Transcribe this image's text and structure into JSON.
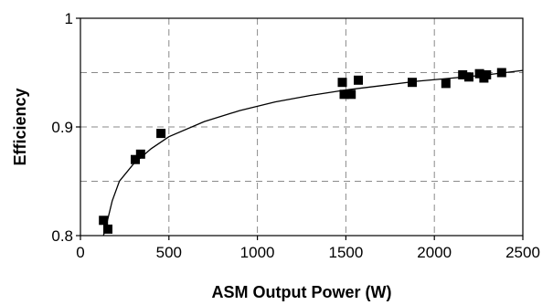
{
  "chart_data": {
    "type": "scatter",
    "xlabel": "ASM Output Power (W)",
    "ylabel": "Efficiency",
    "xlim": [
      0,
      2500
    ],
    "ylim": [
      0.8,
      1.0
    ],
    "x_ticks": [
      {
        "value": 0,
        "label": "0"
      },
      {
        "value": 500,
        "label": "500"
      },
      {
        "value": 1000,
        "label": "1000"
      },
      {
        "value": 1500,
        "label": "1500"
      },
      {
        "value": 2000,
        "label": "2000"
      },
      {
        "value": 2500,
        "label": "2500"
      }
    ],
    "y_ticks": [
      {
        "value": 0.8,
        "label": "0.8"
      },
      {
        "value": 0.9,
        "label": "0.9"
      },
      {
        "value": 1.0,
        "label": "1"
      }
    ],
    "y_gridlines": [
      0.85,
      0.9,
      0.95
    ],
    "x_gridlines": [
      500,
      1000,
      1500,
      2000
    ],
    "grid": true,
    "series": [
      {
        "type": "scatter",
        "marker": "square",
        "color": "#000000",
        "points": [
          {
            "x": 130,
            "y": 0.814
          },
          {
            "x": 155,
            "y": 0.806
          },
          {
            "x": 310,
            "y": 0.87
          },
          {
            "x": 340,
            "y": 0.875
          },
          {
            "x": 455,
            "y": 0.894
          },
          {
            "x": 1480,
            "y": 0.941
          },
          {
            "x": 1490,
            "y": 0.93
          },
          {
            "x": 1530,
            "y": 0.93
          },
          {
            "x": 1570,
            "y": 0.943
          },
          {
            "x": 1875,
            "y": 0.941
          },
          {
            "x": 2065,
            "y": 0.94
          },
          {
            "x": 2160,
            "y": 0.948
          },
          {
            "x": 2195,
            "y": 0.946
          },
          {
            "x": 2255,
            "y": 0.949
          },
          {
            "x": 2280,
            "y": 0.945
          },
          {
            "x": 2295,
            "y": 0.948
          },
          {
            "x": 2380,
            "y": 0.95
          }
        ]
      },
      {
        "type": "line",
        "color": "#000000",
        "points": [
          {
            "x": 130,
            "y": 0.8
          },
          {
            "x": 150,
            "y": 0.812
          },
          {
            "x": 180,
            "y": 0.832
          },
          {
            "x": 220,
            "y": 0.85
          },
          {
            "x": 300,
            "y": 0.866
          },
          {
            "x": 400,
            "y": 0.88
          },
          {
            "x": 500,
            "y": 0.891
          },
          {
            "x": 700,
            "y": 0.905
          },
          {
            "x": 900,
            "y": 0.915
          },
          {
            "x": 1100,
            "y": 0.923
          },
          {
            "x": 1300,
            "y": 0.929
          },
          {
            "x": 1500,
            "y": 0.934
          },
          {
            "x": 1700,
            "y": 0.938
          },
          {
            "x": 1900,
            "y": 0.942
          },
          {
            "x": 2100,
            "y": 0.945
          },
          {
            "x": 2300,
            "y": 0.948
          },
          {
            "x": 2500,
            "y": 0.952
          }
        ]
      }
    ]
  }
}
